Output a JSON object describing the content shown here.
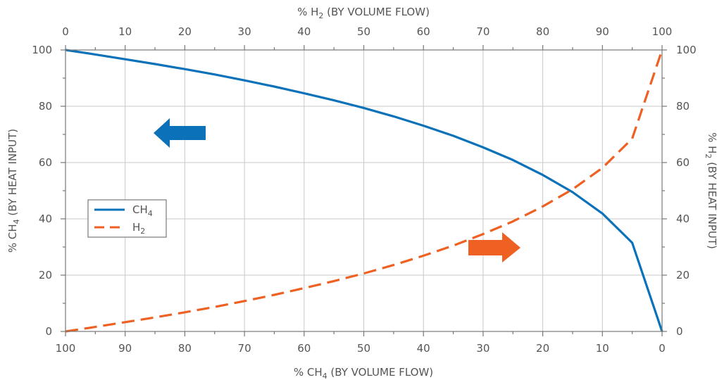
{
  "chart_data": {
    "type": "line",
    "x_bottom": {
      "label_prefix": "% CH",
      "label_sub": "4",
      "label_suffix": " (BY VOLUME FLOW)",
      "range": [
        100,
        0
      ],
      "ticks": [
        "100",
        "90",
        "80",
        "70",
        "60",
        "50",
        "40",
        "30",
        "20",
        "10",
        "0"
      ]
    },
    "x_top": {
      "label_prefix": "% H",
      "label_sub": "2",
      "label_suffix": " (BY VOLUME FLOW)",
      "range": [
        0,
        100
      ],
      "ticks": [
        "0",
        "10",
        "20",
        "30",
        "40",
        "50",
        "60",
        "70",
        "80",
        "90",
        "100"
      ]
    },
    "y_left": {
      "label_prefix": "% CH",
      "label_sub": "4",
      "label_suffix": " (BY HEAT INPUT)",
      "range": [
        0,
        100
      ],
      "ticks": [
        "0",
        "20",
        "40",
        "60",
        "80",
        "100"
      ]
    },
    "y_right": {
      "label_prefix": "% H",
      "label_sub": "2",
      "label_suffix": " (BY HEAT INPUT)",
      "range": [
        0,
        100
      ],
      "ticks": [
        "0",
        "20",
        "40",
        "60",
        "80",
        "100"
      ]
    },
    "grid": true,
    "legend_position": "left-middle",
    "x": [
      0,
      5,
      10,
      15,
      20,
      25,
      30,
      35,
      40,
      45,
      50,
      55,
      60,
      65,
      70,
      75,
      80,
      85,
      90,
      95,
      100
    ],
    "series": [
      {
        "name_prefix": "CH",
        "name_sub": "4",
        "color": "#0b72b9",
        "style": "solid",
        "axis": "left",
        "values": [
          100,
          98.4,
          96.7,
          95.0,
          93.2,
          91.3,
          89.2,
          87.0,
          84.6,
          82.1,
          79.4,
          76.4,
          73.1,
          69.5,
          65.4,
          60.9,
          55.6,
          49.5,
          41.9,
          31.5,
          0
        ]
      },
      {
        "name_prefix": "H",
        "name_sub": "2",
        "color": "#ee6123",
        "style": "dashed",
        "axis": "right",
        "values": [
          0,
          1.6,
          3.3,
          5.0,
          6.8,
          8.7,
          10.8,
          13.0,
          15.4,
          17.9,
          20.6,
          23.6,
          26.9,
          30.5,
          34.6,
          39.1,
          44.4,
          50.5,
          58.1,
          68.5,
          100
        ]
      }
    ],
    "annotations": [
      {
        "type": "arrow",
        "direction": "left",
        "color": "#0b72b9",
        "points_to": "left axis"
      },
      {
        "type": "arrow",
        "direction": "right",
        "color": "#ee6123",
        "points_to": "right axis"
      }
    ]
  }
}
